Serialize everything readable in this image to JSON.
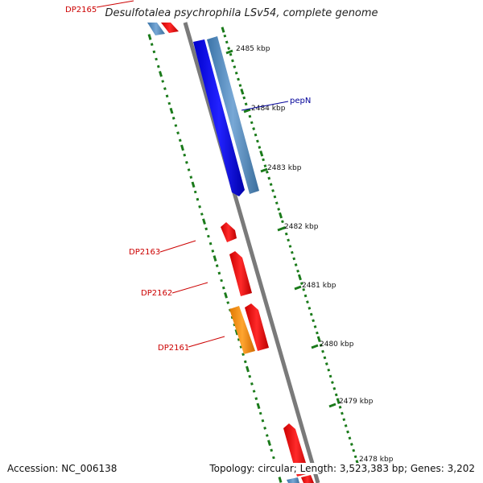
{
  "title": "Desulfotalea psychrophila LSv54, complete genome",
  "footer": {
    "accession": "Accession: NC_006138",
    "summary": "Topology: circular; Length: 3,523,383 bp; Genes: 3,202"
  },
  "ticks": [
    "2485 kbp",
    "2484 kbp",
    "2483 kbp",
    "2482 kbp",
    "2481 kbp",
    "2480 kbp",
    "2479 kbp",
    "2478 kbp"
  ],
  "genes": [
    {
      "label": "DP2165",
      "color": "#e8141a"
    },
    {
      "label": "pepN",
      "color": "#1400c8"
    },
    {
      "label": "DP2163",
      "color": "#e8141a"
    },
    {
      "label": "DP2162",
      "color": "#e8141a"
    },
    {
      "label": "DP2161",
      "color": "#e8141a"
    }
  ],
  "colors": {
    "backbone": "#7a7a7a",
    "tick": "#1a7a1a",
    "cds_forward": "#0000ee",
    "cds_reverse": "#4a86b8",
    "gene_red": "#ff0000",
    "gene_orange": "#ff9900",
    "label_red": "#cc0000",
    "label_blue": "#000099"
  }
}
